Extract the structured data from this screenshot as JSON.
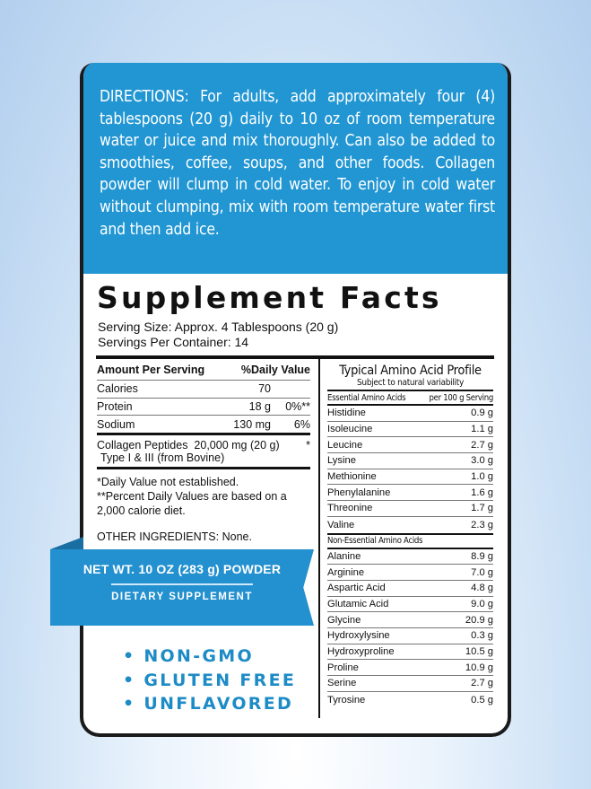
{
  "directions": "DIRECTIONS: For adults, add approximately four (4) tablespoons (20 g) daily to 10 oz of room temperature water or juice and mix thoroughly. Can also be added to smoothies, coffee, soups, and other foods. Collagen powder will clump in cold water. To enjoy in cold water without clumping, mix with room temperature water first and then add ice.",
  "facts": {
    "title": "Supplement Facts",
    "serving_size": "Serving Size: Approx. 4 Tablespoons (20 g)",
    "servings": "Servings Per Container: 14",
    "header": {
      "amount": "Amount Per Serving",
      "dv": "%Daily Value"
    },
    "rows": [
      {
        "name": "Calories",
        "amount": "70",
        "dv": ""
      },
      {
        "name": "Protein",
        "amount": "18 g",
        "dv": "0%**"
      },
      {
        "name": "Sodium",
        "amount": "130 mg",
        "dv": "6%"
      }
    ],
    "collagen": {
      "name": "Collagen Peptides",
      "amount": "20,000 mg (20 g)",
      "dv": "*",
      "type": "Type I & III (from Bovine)"
    },
    "note1": "*Daily Value not established.",
    "note2": "**Percent Daily Values are based on a 2,000 calorie diet.",
    "other": "OTHER INGREDIENTS: None."
  },
  "amino": {
    "title": "Typical Amino Acid Profile",
    "subtitle": "Subject to natural variability",
    "essential_header": "Essential Amino Acids",
    "per": "per 100 g Serving",
    "essential": [
      {
        "n": "Histidine",
        "v": "0.9 g"
      },
      {
        "n": "Isoleucine",
        "v": "1.1 g"
      },
      {
        "n": "Leucine",
        "v": "2.7 g"
      },
      {
        "n": "Lysine",
        "v": "3.0 g"
      },
      {
        "n": "Methionine",
        "v": "1.0 g"
      },
      {
        "n": "Phenylalanine",
        "v": "1.6 g"
      },
      {
        "n": "Threonine",
        "v": "1.7 g"
      },
      {
        "n": "Valine",
        "v": "2.3 g"
      }
    ],
    "nonessential_header": "Non-Essential Amino Acids",
    "nonessential": [
      {
        "n": "Alanine",
        "v": "8.9 g"
      },
      {
        "n": "Arginine",
        "v": "7.0 g"
      },
      {
        "n": "Aspartic Acid",
        "v": "4.8 g"
      },
      {
        "n": "Glutamic Acid",
        "v": "9.0 g"
      },
      {
        "n": "Glycine",
        "v": "20.9 g"
      },
      {
        "n": "Hydroxylysine",
        "v": "0.3 g"
      },
      {
        "n": "Hydroxyproline",
        "v": "10.5 g"
      },
      {
        "n": "Proline",
        "v": "10.9 g"
      },
      {
        "n": "Serine",
        "v": "2.7 g"
      },
      {
        "n": "Tyrosine",
        "v": "0.5 g"
      }
    ]
  },
  "ribbon": {
    "net_wt": "NET WT. 10 OZ (283 g) POWDER",
    "type": "DIETARY SUPPLEMENT"
  },
  "claims": [
    "• NON-GMO",
    "• GLUTEN FREE",
    "• UNFLAVORED"
  ],
  "colors": {
    "brand_blue": "#2196d3",
    "claim_blue": "#1d8bc6"
  }
}
